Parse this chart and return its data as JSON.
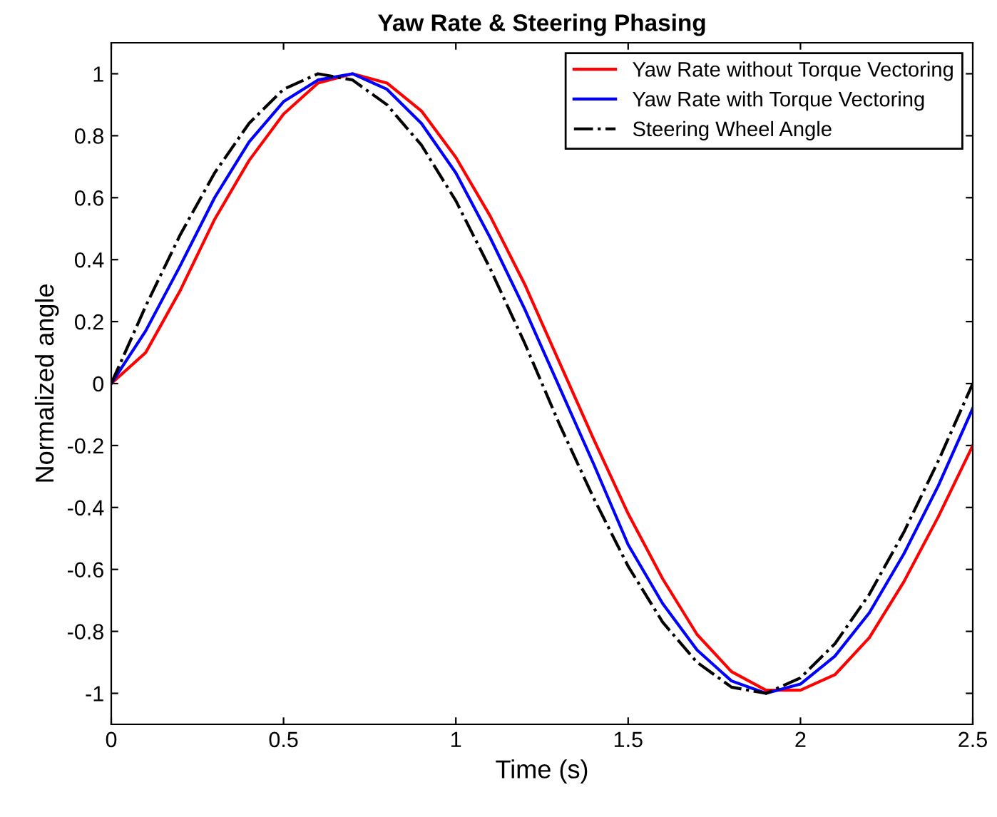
{
  "chart_data": {
    "type": "line",
    "title": "Yaw Rate & Steering Phasing",
    "xlabel": "Time (s)",
    "ylabel": "Normalized angle",
    "x": [
      0,
      0.1,
      0.2,
      0.3,
      0.4,
      0.5,
      0.6,
      0.7,
      0.8,
      0.9,
      1.0,
      1.1,
      1.2,
      1.3,
      1.4,
      1.5,
      1.6,
      1.7,
      1.8,
      1.9,
      2.0,
      2.1,
      2.2,
      2.3,
      2.4,
      2.5
    ],
    "series": [
      {
        "name": "Yaw Rate without Torque Vectoring",
        "color": "#ff0000",
        "line_style": "solid",
        "values": [
          0,
          0.1,
          0.3,
          0.53,
          0.72,
          0.87,
          0.97,
          1.0,
          0.97,
          0.88,
          0.73,
          0.54,
          0.32,
          0.07,
          -0.18,
          -0.42,
          -0.63,
          -0.81,
          -0.93,
          -0.99,
          -0.99,
          -0.94,
          -0.82,
          -0.64,
          -0.43,
          -0.2
        ]
      },
      {
        "name": "Yaw Rate with Torque Vectoring",
        "color": "#0000ff",
        "line_style": "solid",
        "values": [
          0,
          0.17,
          0.38,
          0.6,
          0.78,
          0.91,
          0.98,
          1.0,
          0.95,
          0.84,
          0.68,
          0.47,
          0.24,
          -0.01,
          -0.26,
          -0.52,
          -0.71,
          -0.86,
          -0.96,
          -1.0,
          -0.97,
          -0.88,
          -0.74,
          -0.55,
          -0.33,
          -0.08
        ]
      },
      {
        "name": "Steering Wheel Angle",
        "color": "#000000",
        "line_style": "dashdot",
        "values": [
          0,
          0.25,
          0.48,
          0.68,
          0.84,
          0.95,
          1.0,
          0.98,
          0.9,
          0.77,
          0.59,
          0.37,
          0.13,
          -0.13,
          -0.37,
          -0.59,
          -0.77,
          -0.9,
          -0.98,
          -1.0,
          -0.95,
          -0.84,
          -0.68,
          -0.48,
          -0.25,
          0
        ]
      }
    ],
    "xlim": [
      0,
      2.5
    ],
    "xticks": [
      0,
      0.5,
      1,
      1.5,
      2,
      2.5
    ],
    "ylim": [
      -1.1,
      1.1
    ],
    "yticks": [
      -1,
      -0.8,
      -0.6,
      -0.4,
      -0.2,
      0,
      0.2,
      0.4,
      0.6,
      0.8,
      1
    ],
    "grid": false,
    "legend": "top right"
  }
}
